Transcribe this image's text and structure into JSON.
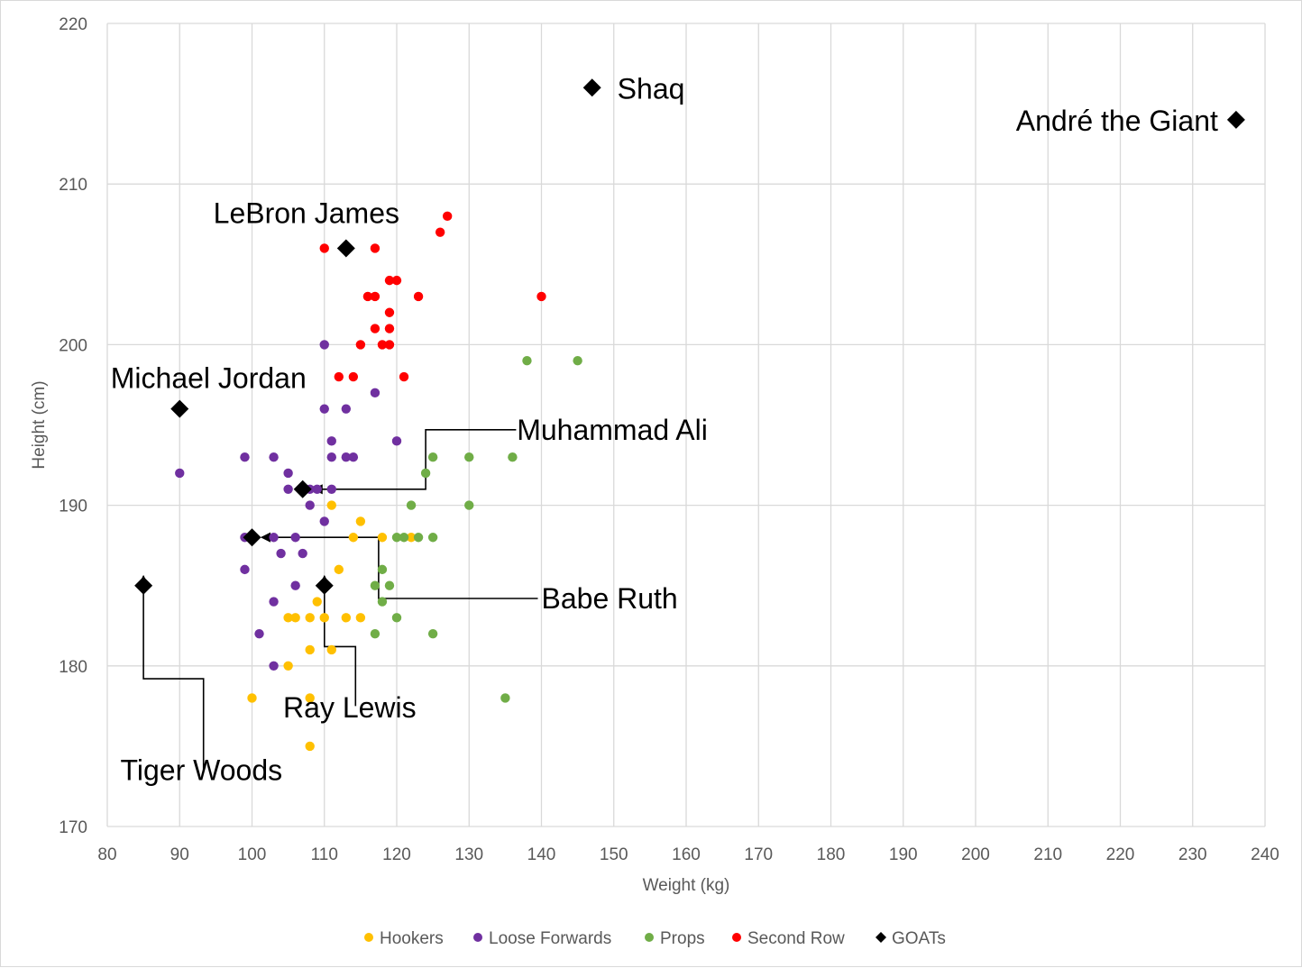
{
  "chart_data": {
    "type": "scatter",
    "title": "",
    "xlabel": "Weight (kg)",
    "ylabel": "Height (cm)",
    "xlim": [
      80,
      240
    ],
    "ylim": [
      170,
      220
    ],
    "x_ticks": [
      "80",
      "90",
      "100",
      "110",
      "120",
      "130",
      "140",
      "150",
      "160",
      "170",
      "180",
      "190",
      "200",
      "210",
      "220",
      "230",
      "240"
    ],
    "y_ticks": [
      "170",
      "180",
      "190",
      "200",
      "210",
      "220"
    ],
    "grid": true,
    "legend_position": "bottom",
    "series": [
      {
        "name": "Hookers",
        "color": "#FFC000",
        "marker": "circle",
        "points": [
          [
            100,
            178
          ],
          [
            105,
            183
          ],
          [
            105,
            180
          ],
          [
            106,
            183
          ],
          [
            108,
            183
          ],
          [
            108,
            181
          ],
          [
            108,
            178
          ],
          [
            108,
            175
          ],
          [
            109,
            184
          ],
          [
            110,
            183
          ],
          [
            111,
            190
          ],
          [
            111,
            181
          ],
          [
            112,
            186
          ],
          [
            113,
            183
          ],
          [
            114,
            188
          ],
          [
            115,
            189
          ],
          [
            115,
            183
          ],
          [
            118,
            188
          ],
          [
            122,
            188
          ]
        ]
      },
      {
        "name": "Loose Forwards",
        "color": "#7030A0",
        "marker": "circle",
        "points": [
          [
            90,
            192
          ],
          [
            99,
            193
          ],
          [
            99,
            188
          ],
          [
            99,
            186
          ],
          [
            100,
            188
          ],
          [
            101,
            182
          ],
          [
            103,
            193
          ],
          [
            103,
            188
          ],
          [
            103,
            184
          ],
          [
            103,
            180
          ],
          [
            104,
            187
          ],
          [
            105,
            192
          ],
          [
            105,
            191
          ],
          [
            106,
            188
          ],
          [
            106,
            185
          ],
          [
            107,
            187
          ],
          [
            108,
            191
          ],
          [
            108,
            190
          ],
          [
            109,
            191
          ],
          [
            110,
            200
          ],
          [
            110,
            196
          ],
          [
            110,
            189
          ],
          [
            111,
            194
          ],
          [
            111,
            193
          ],
          [
            111,
            191
          ],
          [
            113,
            196
          ],
          [
            113,
            193
          ],
          [
            114,
            193
          ],
          [
            117,
            197
          ],
          [
            120,
            194
          ]
        ]
      },
      {
        "name": "Props",
        "color": "#70AD47",
        "marker": "circle",
        "points": [
          [
            117,
            185
          ],
          [
            117,
            182
          ],
          [
            118,
            186
          ],
          [
            118,
            184
          ],
          [
            119,
            185
          ],
          [
            120,
            188
          ],
          [
            120,
            183
          ],
          [
            121,
            188
          ],
          [
            122,
            190
          ],
          [
            123,
            188
          ],
          [
            124,
            192
          ],
          [
            125,
            193
          ],
          [
            125,
            188
          ],
          [
            125,
            182
          ],
          [
            130,
            193
          ],
          [
            130,
            190
          ],
          [
            135,
            178
          ],
          [
            136,
            193
          ],
          [
            138,
            199
          ],
          [
            145,
            199
          ]
        ]
      },
      {
        "name": "Second Row",
        "color": "#FF0000",
        "marker": "circle",
        "points": [
          [
            110,
            206
          ],
          [
            112,
            198
          ],
          [
            114,
            198
          ],
          [
            115,
            200
          ],
          [
            116,
            203
          ],
          [
            117,
            206
          ],
          [
            117,
            203
          ],
          [
            117,
            201
          ],
          [
            118,
            200
          ],
          [
            119,
            204
          ],
          [
            119,
            202
          ],
          [
            119,
            201
          ],
          [
            119,
            200
          ],
          [
            120,
            204
          ],
          [
            121,
            198
          ],
          [
            123,
            203
          ],
          [
            126,
            207
          ],
          [
            127,
            208
          ],
          [
            140,
            203
          ]
        ]
      },
      {
        "name": "GOATs",
        "color": "#000000",
        "marker": "diamond",
        "points": [
          [
            147,
            216
          ],
          [
            236,
            214
          ],
          [
            113,
            206
          ],
          [
            90,
            196
          ],
          [
            107,
            191
          ],
          [
            100,
            188
          ],
          [
            85,
            185
          ],
          [
            110,
            185
          ]
        ]
      }
    ],
    "annotations": [
      {
        "label": "Shaq",
        "point": [
          147,
          216
        ],
        "style": "inline"
      },
      {
        "label": "André the Giant",
        "point": [
          236,
          214
        ],
        "style": "inline"
      },
      {
        "label": "LeBron James",
        "point": [
          113,
          206
        ],
        "style": "inline"
      },
      {
        "label": "Michael Jordan",
        "point": [
          90,
          196
        ],
        "style": "inline"
      },
      {
        "label": "Muhammad Ali",
        "point": [
          107,
          191
        ],
        "style": "arrow"
      },
      {
        "label": "Babe Ruth",
        "point": [
          100,
          188
        ],
        "style": "arrow"
      },
      {
        "label": "Ray Lewis",
        "point": [
          110,
          185
        ],
        "style": "arrow"
      },
      {
        "label": "Tiger Woods",
        "point": [
          85,
          185
        ],
        "style": "arrow"
      }
    ]
  }
}
